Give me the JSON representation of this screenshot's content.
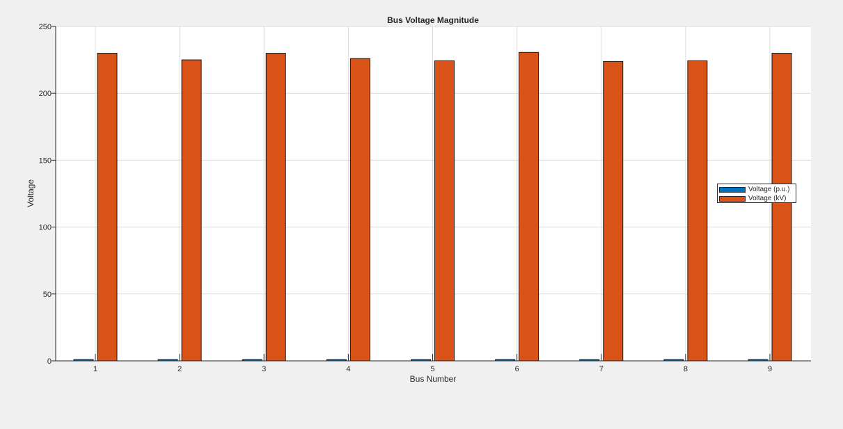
{
  "chart_data": {
    "type": "bar",
    "title": "Bus Voltage Magnitude",
    "xlabel": "Bus Number",
    "ylabel": "Voltage",
    "categories": [
      "1",
      "2",
      "3",
      "4",
      "5",
      "6",
      "7",
      "8",
      "9"
    ],
    "series": [
      {
        "name": "Voltage (p.u.)",
        "color": "#0072bd",
        "values": [
          1.0,
          0.98,
          1.0,
          0.982,
          0.975,
          1.003,
          0.973,
          0.975,
          1.0
        ]
      },
      {
        "name": "Voltage (kV)",
        "color": "#d95319",
        "values": [
          230,
          225,
          230,
          226,
          224.3,
          230.6,
          223.8,
          224.3,
          230
        ]
      }
    ],
    "ylim": [
      0,
      250
    ],
    "yticks": [
      0,
      50,
      100,
      150,
      200,
      250
    ],
    "ytick_labels": [
      "0",
      "50",
      "100",
      "150",
      "200",
      "250"
    ],
    "grid": true,
    "legend_position": "right"
  }
}
